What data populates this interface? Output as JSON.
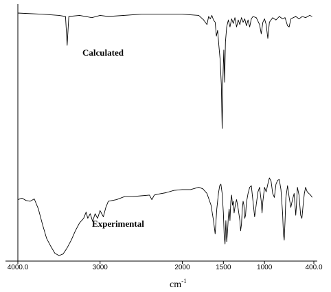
{
  "chart_data": {
    "type": "line",
    "xlabel": "cm",
    "xlabel_superscript": "-1",
    "x_axis_reversed": true,
    "xlim": [
      4000,
      400
    ],
    "ticks": [
      {
        "value": 4000,
        "label": "4000.0"
      },
      {
        "value": 3000,
        "label": "3000"
      },
      {
        "value": 2000,
        "label": "2000"
      },
      {
        "value": 1500,
        "label": "1500"
      },
      {
        "value": 1000,
        "label": "1000"
      },
      {
        "value": 400,
        "label": "400.0"
      }
    ],
    "grid": false,
    "series": [
      {
        "name": "Calculated",
        "points": [
          [
            4000,
            0.0
          ],
          [
            3700,
            0.01
          ],
          [
            3500,
            0.02
          ],
          [
            3420,
            0.03
          ],
          [
            3400,
            0.28
          ],
          [
            3380,
            0.03
          ],
          [
            3250,
            0.02
          ],
          [
            3100,
            0.04
          ],
          [
            3000,
            0.02
          ],
          [
            2900,
            0.03
          ],
          [
            2500,
            0.01
          ],
          [
            2000,
            0.01
          ],
          [
            1800,
            0.02
          ],
          [
            1740,
            0.06
          ],
          [
            1700,
            0.1
          ],
          [
            1680,
            0.03
          ],
          [
            1660,
            0.05
          ],
          [
            1640,
            0.02
          ],
          [
            1620,
            0.06
          ],
          [
            1600,
            0.08
          ],
          [
            1585,
            0.2
          ],
          [
            1570,
            0.15
          ],
          [
            1555,
            0.28
          ],
          [
            1540,
            0.4
          ],
          [
            1525,
            0.62
          ],
          [
            1515,
            1.0
          ],
          [
            1505,
            0.55
          ],
          [
            1495,
            0.32
          ],
          [
            1485,
            0.6
          ],
          [
            1475,
            0.25
          ],
          [
            1460,
            0.12
          ],
          [
            1440,
            0.06
          ],
          [
            1420,
            0.12
          ],
          [
            1400,
            0.05
          ],
          [
            1380,
            0.09
          ],
          [
            1360,
            0.04
          ],
          [
            1340,
            0.12
          ],
          [
            1320,
            0.06
          ],
          [
            1300,
            0.1
          ],
          [
            1280,
            0.04
          ],
          [
            1260,
            0.08
          ],
          [
            1240,
            0.05
          ],
          [
            1220,
            0.11
          ],
          [
            1200,
            0.06
          ],
          [
            1180,
            0.12
          ],
          [
            1160,
            0.05
          ],
          [
            1140,
            0.03
          ],
          [
            1100,
            0.04
          ],
          [
            1060,
            0.1
          ],
          [
            1040,
            0.18
          ],
          [
            1020,
            0.08
          ],
          [
            1000,
            0.05
          ],
          [
            980,
            0.1
          ],
          [
            960,
            0.22
          ],
          [
            940,
            0.08
          ],
          [
            900,
            0.04
          ],
          [
            860,
            0.06
          ],
          [
            820,
            0.03
          ],
          [
            780,
            0.05
          ],
          [
            750,
            0.04
          ],
          [
            720,
            0.11
          ],
          [
            700,
            0.12
          ],
          [
            680,
            0.05
          ],
          [
            650,
            0.04
          ],
          [
            620,
            0.03
          ],
          [
            580,
            0.05
          ],
          [
            540,
            0.03
          ],
          [
            500,
            0.04
          ],
          [
            450,
            0.02
          ],
          [
            420,
            0.03
          ]
        ]
      },
      {
        "name": "Experimental",
        "points": [
          [
            4000,
            0.28
          ],
          [
            3950,
            0.26
          ],
          [
            3900,
            0.29
          ],
          [
            3850,
            0.3
          ],
          [
            3800,
            0.27
          ],
          [
            3750,
            0.4
          ],
          [
            3700,
            0.6
          ],
          [
            3650,
            0.78
          ],
          [
            3600,
            0.88
          ],
          [
            3550,
            0.97
          ],
          [
            3500,
            1.0
          ],
          [
            3450,
            0.98
          ],
          [
            3400,
            0.9
          ],
          [
            3350,
            0.8
          ],
          [
            3300,
            0.68
          ],
          [
            3250,
            0.58
          ],
          [
            3200,
            0.52
          ],
          [
            3170,
            0.44
          ],
          [
            3150,
            0.52
          ],
          [
            3120,
            0.46
          ],
          [
            3090,
            0.56
          ],
          [
            3060,
            0.46
          ],
          [
            3030,
            0.52
          ],
          [
            3000,
            0.42
          ],
          [
            2960,
            0.5
          ],
          [
            2930,
            0.38
          ],
          [
            2900,
            0.3
          ],
          [
            2800,
            0.28
          ],
          [
            2700,
            0.24
          ],
          [
            2600,
            0.24
          ],
          [
            2500,
            0.23
          ],
          [
            2400,
            0.22
          ],
          [
            2370,
            0.28
          ],
          [
            2340,
            0.22
          ],
          [
            2300,
            0.21
          ],
          [
            2200,
            0.19
          ],
          [
            2100,
            0.16
          ],
          [
            2000,
            0.15
          ],
          [
            1900,
            0.15
          ],
          [
            1800,
            0.12
          ],
          [
            1750,
            0.14
          ],
          [
            1700,
            0.2
          ],
          [
            1650,
            0.35
          ],
          [
            1620,
            0.55
          ],
          [
            1600,
            0.72
          ],
          [
            1580,
            0.4
          ],
          [
            1560,
            0.2
          ],
          [
            1545,
            0.1
          ],
          [
            1530,
            0.08
          ],
          [
            1515,
            0.2
          ],
          [
            1500,
            0.45
          ],
          [
            1490,
            0.75
          ],
          [
            1480,
            0.85
          ],
          [
            1470,
            0.55
          ],
          [
            1460,
            0.82
          ],
          [
            1450,
            0.7
          ],
          [
            1440,
            0.5
          ],
          [
            1430,
            0.4
          ],
          [
            1420,
            0.55
          ],
          [
            1410,
            0.3
          ],
          [
            1400,
            0.22
          ],
          [
            1390,
            0.35
          ],
          [
            1380,
            0.3
          ],
          [
            1370,
            0.45
          ],
          [
            1360,
            0.38
          ],
          [
            1350,
            0.32
          ],
          [
            1340,
            0.28
          ],
          [
            1320,
            0.4
          ],
          [
            1300,
            0.55
          ],
          [
            1290,
            0.68
          ],
          [
            1280,
            0.6
          ],
          [
            1270,
            0.4
          ],
          [
            1260,
            0.3
          ],
          [
            1250,
            0.35
          ],
          [
            1240,
            0.52
          ],
          [
            1230,
            0.48
          ],
          [
            1220,
            0.32
          ],
          [
            1200,
            0.2
          ],
          [
            1180,
            0.12
          ],
          [
            1160,
            0.1
          ],
          [
            1140,
            0.3
          ],
          [
            1120,
            0.5
          ],
          [
            1100,
            0.34
          ],
          [
            1080,
            0.18
          ],
          [
            1060,
            0.12
          ],
          [
            1040,
            0.3
          ],
          [
            1030,
            0.45
          ],
          [
            1020,
            0.3
          ],
          [
            1000,
            0.12
          ],
          [
            980,
            0.18
          ],
          [
            960,
            0.08
          ],
          [
            940,
            0.0
          ],
          [
            920,
            0.04
          ],
          [
            900,
            0.2
          ],
          [
            880,
            0.25
          ],
          [
            860,
            0.08
          ],
          [
            840,
            0.03
          ],
          [
            820,
            0.02
          ],
          [
            800,
            0.15
          ],
          [
            780,
            0.45
          ],
          [
            770,
            0.72
          ],
          [
            760,
            0.8
          ],
          [
            750,
            0.55
          ],
          [
            740,
            0.25
          ],
          [
            730,
            0.18
          ],
          [
            720,
            0.1
          ],
          [
            700,
            0.25
          ],
          [
            680,
            0.38
          ],
          [
            660,
            0.28
          ],
          [
            640,
            0.2
          ],
          [
            620,
            0.48
          ],
          [
            610,
            0.32
          ],
          [
            600,
            0.12
          ],
          [
            580,
            0.22
          ],
          [
            560,
            0.48
          ],
          [
            545,
            0.52
          ],
          [
            530,
            0.35
          ],
          [
            515,
            0.2
          ],
          [
            500,
            0.12
          ],
          [
            480,
            0.18
          ],
          [
            460,
            0.2
          ],
          [
            440,
            0.22
          ],
          [
            420,
            0.25
          ]
        ]
      }
    ]
  }
}
